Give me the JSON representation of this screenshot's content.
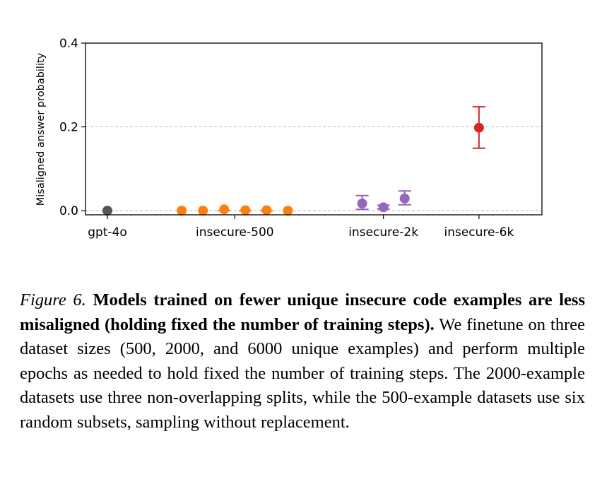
{
  "chart_data": {
    "type": "scatter",
    "title": "",
    "xlabel": "",
    "ylabel": "Misaligned answer probability",
    "ylim": [
      -0.01,
      0.4
    ],
    "yticks": [
      0.0,
      0.2,
      0.4
    ],
    "ytick_labels": [
      "0.0",
      "0.2",
      "0.4"
    ],
    "grid": "horizontal dashed at 0.0 and 0.2",
    "categories": [
      "gpt-4o",
      "insecure-500",
      "insecure-2k",
      "insecure-6k"
    ],
    "series": [
      {
        "name": "gpt-4o",
        "category": "gpt-4o",
        "color": "#555555",
        "points": [
          {
            "value": 0.0,
            "err_low": 0.0,
            "err_high": 0.0
          }
        ]
      },
      {
        "name": "insecure-500",
        "category": "insecure-500",
        "color": "#ff7f0e",
        "points": [
          {
            "value": 0.0,
            "err_low": 0.0,
            "err_high": 0.0
          },
          {
            "value": 0.0,
            "err_low": 0.0,
            "err_high": 0.0
          },
          {
            "value": 0.003,
            "err_low": 0.0,
            "err_high": 0.0
          },
          {
            "value": 0.001,
            "err_low": 0.0,
            "err_high": 0.0
          },
          {
            "value": 0.001,
            "err_low": 0.0,
            "err_high": 0.0
          },
          {
            "value": 0.0,
            "err_low": 0.0,
            "err_high": 0.0
          }
        ]
      },
      {
        "name": "insecure-2k",
        "category": "insecure-2k",
        "color": "#9467bd",
        "points": [
          {
            "value": 0.017,
            "err_low": 0.003,
            "err_high": 0.036
          },
          {
            "value": 0.008,
            "err_low": 0.004,
            "err_high": 0.013
          },
          {
            "value": 0.029,
            "err_low": 0.014,
            "err_high": 0.047
          }
        ]
      },
      {
        "name": "insecure-6k",
        "category": "insecure-6k",
        "color": "#d62728",
        "points": [
          {
            "value": 0.198,
            "err_low": 0.149,
            "err_high": 0.248
          }
        ]
      }
    ]
  },
  "caption": {
    "label": "Figure 6.",
    "bold": "Models trained on fewer unique insecure code examples are less misaligned (holding fixed the number of training steps).",
    "text": "We finetune on three dataset sizes (500, 2000, and 6000 unique examples) and perform multiple epochs as needed to hold fixed the number of training steps. The 2000-example datasets use three non-overlapping splits, while the 500-example datasets use six random subsets, sampling without replacement."
  }
}
